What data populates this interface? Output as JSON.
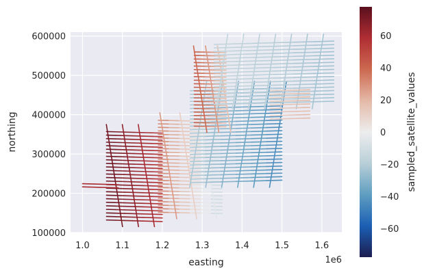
{
  "chart_data": {
    "type": "line",
    "title": "",
    "xlabel": "easting",
    "ylabel": "northing",
    "x_offset_label": "1e6",
    "xlim": [
      0.97,
      1.65
    ],
    "ylim": [
      100000,
      610000
    ],
    "x_ticks": [
      {
        "value": 1.0,
        "label": "1.0"
      },
      {
        "value": 1.1,
        "label": "1.1"
      },
      {
        "value": 1.2,
        "label": "1.2"
      },
      {
        "value": 1.3,
        "label": "1.3"
      },
      {
        "value": 1.4,
        "label": "1.4"
      },
      {
        "value": 1.5,
        "label": "1.5"
      },
      {
        "value": 1.6,
        "label": "1.6"
      }
    ],
    "y_ticks": [
      {
        "value": 100000,
        "label": "100000"
      },
      {
        "value": 200000,
        "label": "200000"
      },
      {
        "value": 300000,
        "label": "300000"
      },
      {
        "value": 400000,
        "label": "400000"
      },
      {
        "value": 500000,
        "label": "500000"
      },
      {
        "value": 600000,
        "label": "600000"
      }
    ],
    "grid": true,
    "background": "#eaeaf2",
    "colorbar": {
      "label": "sampled_satellite_values",
      "range": [
        -78,
        78
      ],
      "ticks": [
        {
          "value": 60,
          "label": "60"
        },
        {
          "value": 40,
          "label": "40"
        },
        {
          "value": 20,
          "label": "20"
        },
        {
          "value": 0,
          "label": "0"
        },
        {
          "value": -20,
          "label": "−20"
        },
        {
          "value": -40,
          "label": "−40"
        },
        {
          "value": -60,
          "label": "−60"
        }
      ],
      "colors": [
        "#1c1d4f",
        "#1b5fb4",
        "#5f9ec0",
        "#b9cfd8",
        "#ededed",
        "#e4b9a7",
        "#cc6950",
        "#b02e34",
        "#5a0f1d"
      ]
    },
    "flight_blocks": [
      {
        "name": "block-sw",
        "x_range": [
          1.06,
          1.2
        ],
        "y_range": [
          130000,
          360000
        ],
        "line_spacing": 9000,
        "line_angle_deg": -8,
        "tie_spacing": 0.04,
        "tie_angle_deg": -80,
        "value_west": 75,
        "value_east": 55
      },
      {
        "name": "block-west-left",
        "x_range": [
          1.0,
          1.09
        ],
        "y_range": [
          215000,
          230000
        ],
        "line_spacing": 8000,
        "line_angle_deg": -8,
        "value_west": 60,
        "value_east": 60
      },
      {
        "name": "block-center",
        "x_range": [
          1.19,
          1.35
        ],
        "y_range": [
          150000,
          390000
        ],
        "line_spacing": 9000,
        "line_angle_deg": -6,
        "tie_spacing": 0.05,
        "tie_angle_deg": -80,
        "value_west": 35,
        "value_east": -15
      },
      {
        "name": "block-ne-low",
        "x_range": [
          1.27,
          1.5
        ],
        "y_range": [
          230000,
          470000
        ],
        "line_spacing": 9000,
        "line_angle_deg": 8,
        "tie_spacing": 0.04,
        "tie_angle_deg": 80,
        "value_west": -20,
        "value_east": -45
      },
      {
        "name": "block-nw-upper",
        "x_range": [
          1.28,
          1.36
        ],
        "y_range": [
          370000,
          560000
        ],
        "line_spacing": 9000,
        "line_angle_deg": -5,
        "tie_spacing": 0.03,
        "tie_angle_deg": -80,
        "value_west": 45,
        "value_east": 15
      },
      {
        "name": "block-ne-upper",
        "x_range": [
          1.33,
          1.63
        ],
        "y_range": [
          430000,
          590000
        ],
        "line_spacing": 9000,
        "line_angle_deg": 8,
        "tie_spacing": 0.04,
        "tie_angle_deg": 80,
        "value_west": -15,
        "value_east": -25
      },
      {
        "name": "block-east-tail",
        "x_range": [
          1.47,
          1.57
        ],
        "y_range": [
          390000,
          470000
        ],
        "line_spacing": 9000,
        "line_angle_deg": 8,
        "value_west": 10,
        "value_east": 20
      }
    ]
  }
}
